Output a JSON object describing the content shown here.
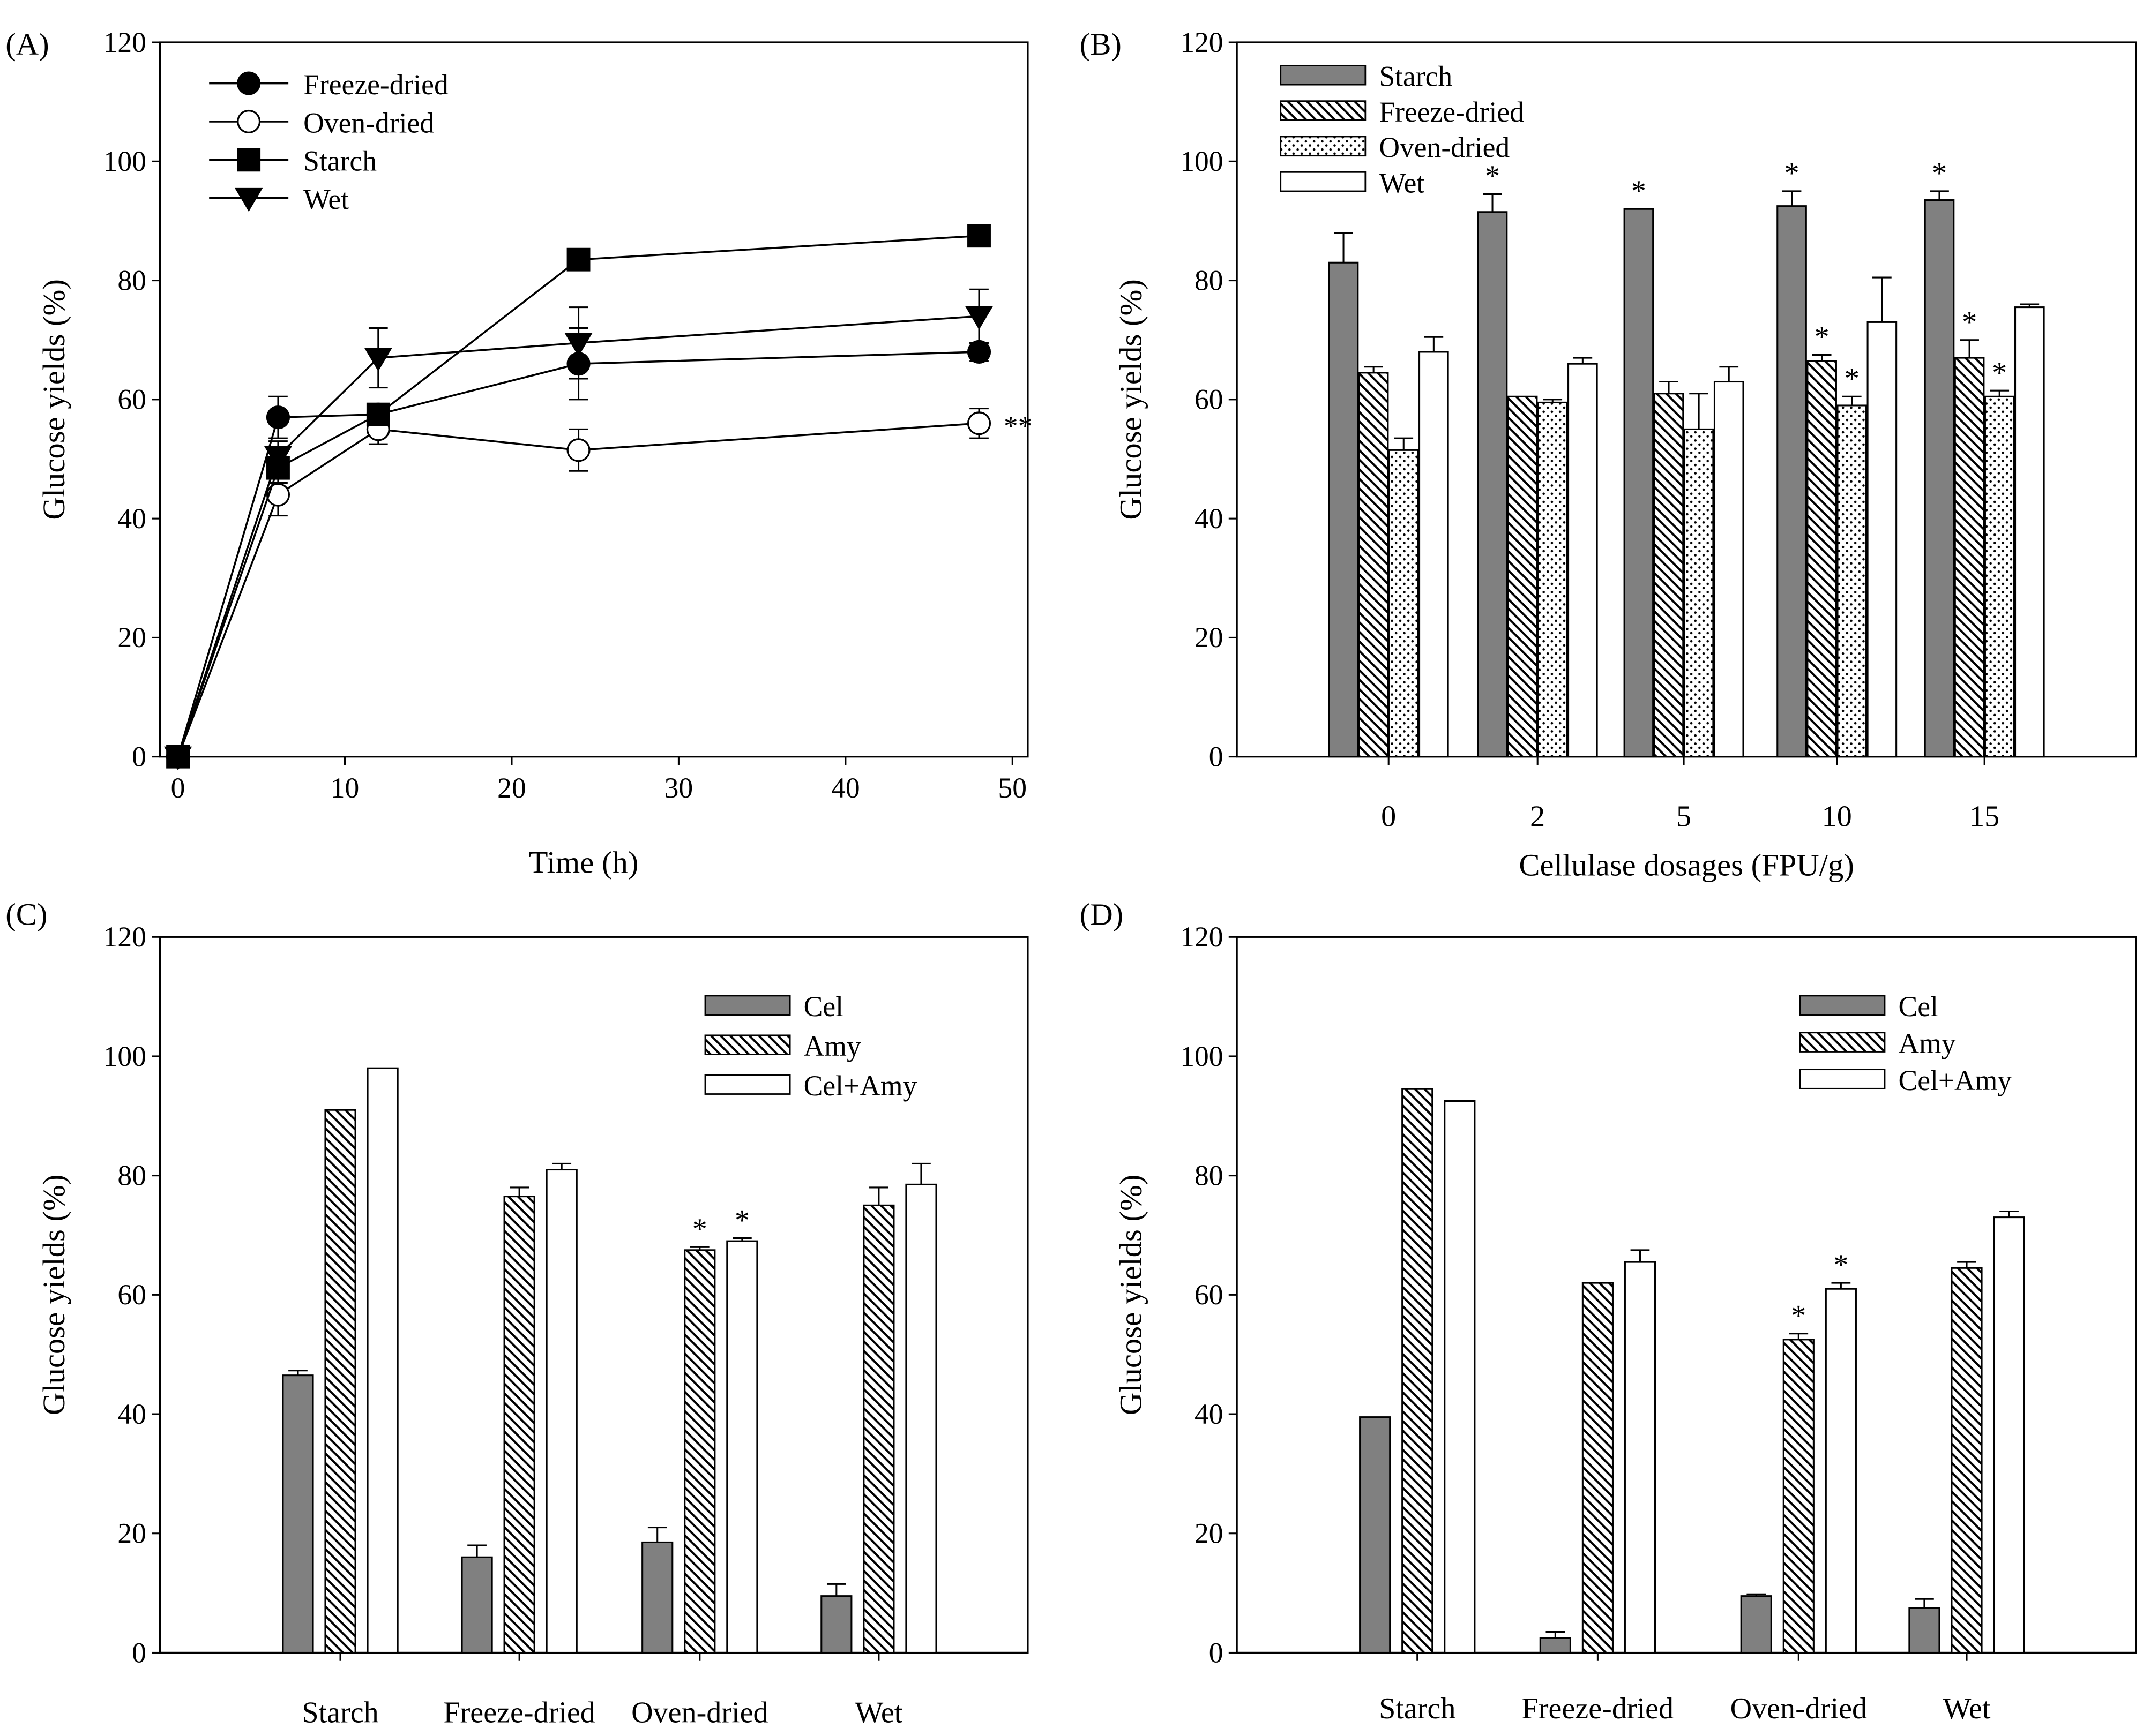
{
  "colors": {
    "starch_fill": "#808080",
    "white": "#ffffff",
    "line": "#000000"
  },
  "chart_data": [
    {
      "panel": "(A)",
      "type": "line",
      "xlabel": "Time (h)",
      "ylabel": "Glucose yields (%)",
      "xlim": [
        -1,
        51
      ],
      "ylim": [
        0,
        120
      ],
      "xticks": [
        "0",
        "10",
        "20",
        "30",
        "40",
        "50"
      ],
      "yticks": [
        "0",
        "20",
        "40",
        "60",
        "80",
        "100",
        "120"
      ],
      "legend_position": "top-left",
      "x": [
        0,
        6,
        12,
        24,
        48
      ],
      "series": [
        {
          "name": "Freeze-dried",
          "marker": "circle-filled",
          "values": [
            0,
            57,
            57.5,
            66,
            68
          ],
          "errors": [
            0,
            3.5,
            1.5,
            6,
            1.5
          ]
        },
        {
          "name": "Oven-dried",
          "marker": "circle-open",
          "values": [
            0,
            44,
            55,
            51.5,
            56
          ],
          "errors": [
            0,
            3.5,
            2.5,
            3.5,
            2.5
          ]
        },
        {
          "name": "Starch",
          "marker": "square-filled",
          "values": [
            0,
            48.5,
            57.5,
            83.5,
            87.5
          ],
          "errors": [
            0,
            2.5,
            1,
            1,
            1
          ]
        },
        {
          "name": "Wet",
          "marker": "triangle-down-filled",
          "values": [
            0,
            50.5,
            67,
            69.5,
            74
          ],
          "errors": [
            0,
            2.5,
            5,
            6,
            4.5
          ]
        }
      ],
      "annotations": [
        {
          "text": "**",
          "x": 48,
          "y": 56
        }
      ]
    },
    {
      "panel": "(B)",
      "type": "bar",
      "xlabel": "Cellulase dosages (FPU/g)",
      "ylabel": "Glucose yields (%)",
      "ylim": [
        0,
        120
      ],
      "yticks": [
        "0",
        "20",
        "40",
        "60",
        "80",
        "100",
        "120"
      ],
      "categories": [
        "0",
        "2",
        "5",
        "10",
        "15"
      ],
      "legend_position": "top-left",
      "series": [
        {
          "name": "Starch",
          "pattern": "solid-gray",
          "values": [
            83,
            91.5,
            92,
            92.5,
            93.5
          ],
          "errors": [
            5,
            3,
            0,
            2.5,
            1.5
          ],
          "marks": [
            "",
            "*",
            "*",
            "*",
            "*"
          ]
        },
        {
          "name": "Freeze-dried",
          "pattern": "hatch",
          "values": [
            64.5,
            60.5,
            61,
            66.5,
            67
          ],
          "errors": [
            1,
            0,
            2,
            1,
            3
          ],
          "marks": [
            "",
            "",
            "",
            "*",
            "*"
          ]
        },
        {
          "name": "Oven-dried",
          "pattern": "dots",
          "values": [
            51.5,
            59.5,
            55,
            59,
            60.5
          ],
          "errors": [
            2,
            0.5,
            6,
            1.5,
            1
          ],
          "marks": [
            "",
            "",
            "",
            "*",
            "*"
          ]
        },
        {
          "name": "Wet",
          "pattern": "white",
          "values": [
            68,
            66,
            63,
            73,
            75.5
          ],
          "errors": [
            2.5,
            1,
            2.5,
            7.5,
            0.5
          ],
          "marks": [
            "",
            "",
            "",
            "",
            ""
          ]
        }
      ]
    },
    {
      "panel": "(C)",
      "type": "bar",
      "xlabel": "",
      "ylabel": "Glucose yields (%)",
      "ylim": [
        0,
        120
      ],
      "yticks": [
        "0",
        "20",
        "40",
        "60",
        "80",
        "100",
        "120"
      ],
      "categories": [
        "Starch",
        "Freeze-dried",
        "Oven-dried",
        "Wet"
      ],
      "legend_position": "top-right",
      "series": [
        {
          "name": "Cel",
          "pattern": "solid-gray",
          "values": [
            46.5,
            16,
            18.5,
            9.5
          ],
          "errors": [
            0.8,
            2,
            2.5,
            2
          ],
          "marks": [
            "",
            "",
            "",
            ""
          ]
        },
        {
          "name": "Amy",
          "pattern": "hatch",
          "values": [
            91,
            76.5,
            67.5,
            75
          ],
          "errors": [
            0,
            1.5,
            0.5,
            3
          ],
          "marks": [
            "",
            "",
            "*",
            ""
          ]
        },
        {
          "name": "Cel+Amy",
          "pattern": "white",
          "values": [
            98,
            81,
            69,
            78.5
          ],
          "errors": [
            0,
            1,
            0.5,
            3.5
          ],
          "marks": [
            "",
            "",
            "*",
            ""
          ]
        }
      ]
    },
    {
      "panel": "(D)",
      "type": "bar",
      "xlabel": "",
      "ylabel": "Glucose yields (%)",
      "ylim": [
        0,
        120
      ],
      "yticks": [
        "0",
        "20",
        "40",
        "60",
        "80",
        "100",
        "120"
      ],
      "categories": [
        "Starch",
        "Freeze-dried",
        "Oven-dried",
        "Wet"
      ],
      "legend_position": "top-right",
      "series": [
        {
          "name": "Cel",
          "pattern": "solid-gray",
          "values": [
            39.5,
            2.5,
            9.5,
            7.5
          ],
          "errors": [
            0,
            1,
            0.3,
            1.5
          ],
          "marks": [
            "",
            "",
            "",
            ""
          ]
        },
        {
          "name": "Amy",
          "pattern": "hatch",
          "values": [
            94.5,
            62,
            52.5,
            64.5
          ],
          "errors": [
            0,
            0,
            1,
            1
          ],
          "marks": [
            "",
            "",
            "*",
            ""
          ]
        },
        {
          "name": "Cel+Amy",
          "pattern": "white",
          "values": [
            92.5,
            65.5,
            61,
            73
          ],
          "errors": [
            0,
            2,
            1,
            1
          ],
          "marks": [
            "",
            "",
            "*",
            ""
          ]
        }
      ]
    }
  ]
}
